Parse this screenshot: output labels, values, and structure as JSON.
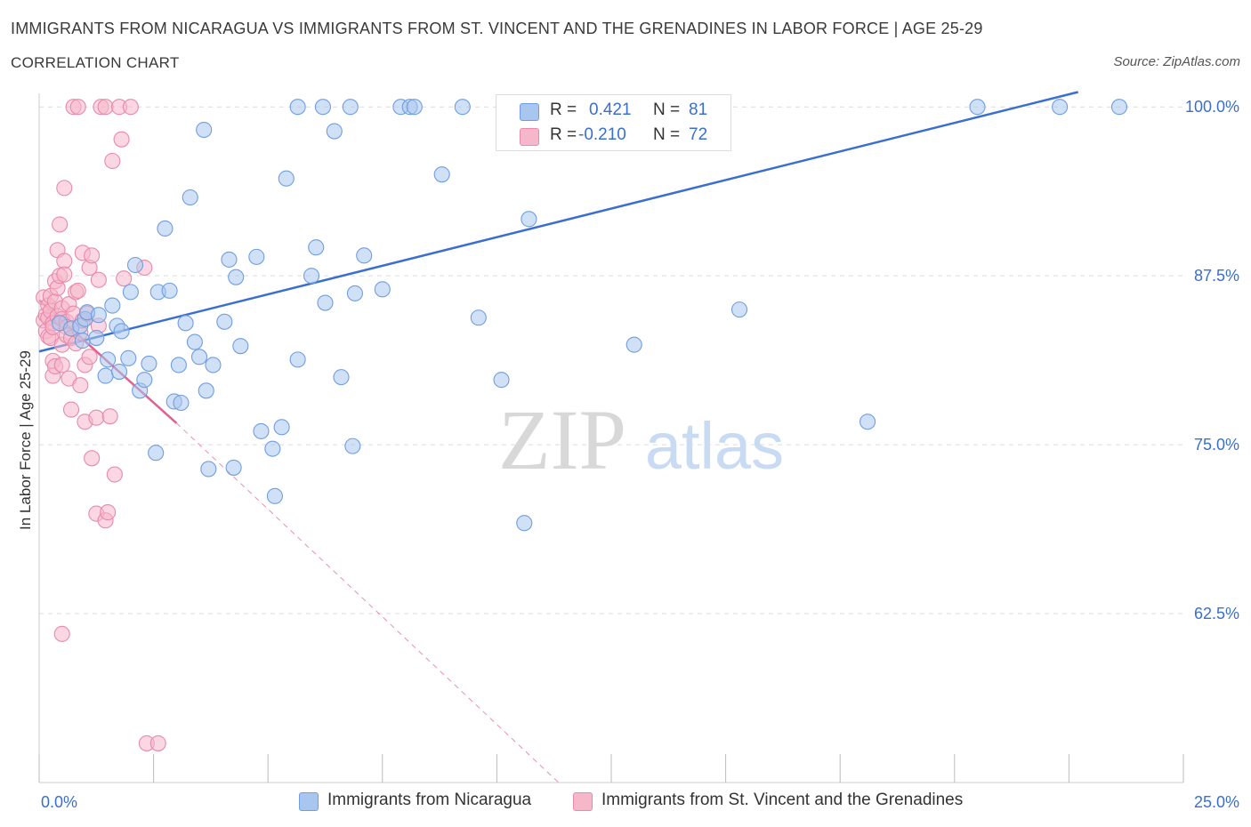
{
  "header": {
    "title": "IMMIGRANTS FROM NICARAGUA VS IMMIGRANTS FROM ST. VINCENT AND THE GRENADINES IN LABOR FORCE | AGE 25-29",
    "subtitle": "CORRELATION CHART",
    "source": "Source: ZipAtlas.com"
  },
  "watermark": {
    "zip": "ZIP",
    "atlas": "atlas"
  },
  "legend": {
    "r_label": "R =",
    "n_label": "N =",
    "rows": [
      {
        "r": "0.421",
        "n": "81"
      },
      {
        "r": "-0.210",
        "n": "72"
      }
    ]
  },
  "chart_data": {
    "type": "scatter",
    "title": "IMMIGRANTS FROM NICARAGUA VS IMMIGRANTS FROM ST. VINCENT AND THE GRENADINES IN LABOR FORCE | AGE 25-29",
    "xlabel": "",
    "ylabel": "In Labor Force | Age 25-29",
    "xlim": [
      0,
      25
    ],
    "ylim": [
      50,
      101
    ],
    "x_tick_labels": [
      "0.0%",
      "25.0%"
    ],
    "y_ticks": [
      62.5,
      75.0,
      87.5,
      100.0
    ],
    "y_tick_labels": [
      "62.5%",
      "75.0%",
      "87.5%",
      "100.0%"
    ],
    "grid": true,
    "legend_position": "bottom",
    "colors": {
      "nicaragua_fill": "#a9c6ef",
      "nicaragua_stroke": "#6f9ee0",
      "nicaragua_line": "#3a6fd0",
      "stvincent_fill": "#f6b7cb",
      "stvincent_stroke": "#e88aaa",
      "stvincent_line": "#e0608e",
      "tick_label": "#3a6fd0"
    },
    "series": [
      {
        "name": "Immigrants from Nicaragua",
        "r": 0.421,
        "n": 81,
        "trend": {
          "x0": 0.0,
          "y0": 81.9,
          "x1": 22.7,
          "y1": 101.1
        },
        "points": [
          [
            0.45,
            84.0
          ],
          [
            0.7,
            83.6
          ],
          [
            0.9,
            83.8
          ],
          [
            0.95,
            82.7
          ],
          [
            1.0,
            84.3
          ],
          [
            1.05,
            84.8
          ],
          [
            1.3,
            84.6
          ],
          [
            1.25,
            82.9
          ],
          [
            1.45,
            80.1
          ],
          [
            1.5,
            81.3
          ],
          [
            1.6,
            85.3
          ],
          [
            1.7,
            83.8
          ],
          [
            1.75,
            80.4
          ],
          [
            1.8,
            83.4
          ],
          [
            1.95,
            81.4
          ],
          [
            2.0,
            86.3
          ],
          [
            2.1,
            88.3
          ],
          [
            2.2,
            79.0
          ],
          [
            2.3,
            79.8
          ],
          [
            2.4,
            81.0
          ],
          [
            2.55,
            74.4
          ],
          [
            2.6,
            86.3
          ],
          [
            2.75,
            91.0
          ],
          [
            2.85,
            86.4
          ],
          [
            2.95,
            78.2
          ],
          [
            3.05,
            80.9
          ],
          [
            3.1,
            78.1
          ],
          [
            3.2,
            84.0
          ],
          [
            3.3,
            93.3
          ],
          [
            3.4,
            82.6
          ],
          [
            3.5,
            81.5
          ],
          [
            3.6,
            98.3
          ],
          [
            3.65,
            79.0
          ],
          [
            3.7,
            73.2
          ],
          [
            3.8,
            80.9
          ],
          [
            4.05,
            84.1
          ],
          [
            4.25,
            73.3
          ],
          [
            4.15,
            88.7
          ],
          [
            4.3,
            87.4
          ],
          [
            4.4,
            82.3
          ],
          [
            4.75,
            88.9
          ],
          [
            4.85,
            76.0
          ],
          [
            5.1,
            74.7
          ],
          [
            5.15,
            71.2
          ],
          [
            5.3,
            76.3
          ],
          [
            5.4,
            94.7
          ],
          [
            5.65,
            81.3
          ],
          [
            5.65,
            100.0
          ],
          [
            5.95,
            87.5
          ],
          [
            6.05,
            89.6
          ],
          [
            6.2,
            100.0
          ],
          [
            6.25,
            85.5
          ],
          [
            6.45,
            98.2
          ],
          [
            6.6,
            80.0
          ],
          [
            6.8,
            100.0
          ],
          [
            6.85,
            74.9
          ],
          [
            6.9,
            86.2
          ],
          [
            7.1,
            89.0
          ],
          [
            7.5,
            86.5
          ],
          [
            7.9,
            100.0
          ],
          [
            8.1,
            100.0
          ],
          [
            8.2,
            100.0
          ],
          [
            8.8,
            95.0
          ],
          [
            9.25,
            100.0
          ],
          [
            9.6,
            84.4
          ],
          [
            10.1,
            79.8
          ],
          [
            10.6,
            69.2
          ],
          [
            10.7,
            91.7
          ],
          [
            11.25,
            100.0
          ],
          [
            11.6,
            100.0
          ],
          [
            12.0,
            100.0
          ],
          [
            12.4,
            100.0
          ],
          [
            13.0,
            100.0
          ],
          [
            13.0,
            82.4
          ],
          [
            15.3,
            85.0
          ],
          [
            18.1,
            76.7
          ],
          [
            20.5,
            100.0
          ],
          [
            22.3,
            100.0
          ],
          [
            23.6,
            100.0
          ]
        ]
      },
      {
        "name": "Immigrants from St. Vincent and the Grenadines",
        "r": -0.21,
        "n": 72,
        "trend": {
          "x0": 0.0,
          "y0": 85.7,
          "x1": 3.0,
          "y1": 76.6
        },
        "trend_ext": {
          "x0": 3.0,
          "y0": 76.6,
          "x1": 11.35,
          "y1": 50.0
        },
        "points": [
          [
            0.1,
            84.2
          ],
          [
            0.1,
            85.9
          ],
          [
            0.15,
            84.6
          ],
          [
            0.15,
            83.4
          ],
          [
            0.2,
            84.4
          ],
          [
            0.2,
            83.0
          ],
          [
            0.2,
            85.3
          ],
          [
            0.25,
            84.9
          ],
          [
            0.25,
            82.9
          ],
          [
            0.25,
            86.0
          ],
          [
            0.3,
            84.0
          ],
          [
            0.3,
            83.7
          ],
          [
            0.3,
            81.2
          ],
          [
            0.3,
            80.1
          ],
          [
            0.35,
            85.6
          ],
          [
            0.35,
            87.1
          ],
          [
            0.35,
            80.8
          ],
          [
            0.4,
            84.5
          ],
          [
            0.4,
            89.4
          ],
          [
            0.4,
            86.6
          ],
          [
            0.45,
            91.3
          ],
          [
            0.45,
            87.5
          ],
          [
            0.5,
            85.1
          ],
          [
            0.5,
            84.3
          ],
          [
            0.5,
            82.4
          ],
          [
            0.5,
            80.9
          ],
          [
            0.5,
            61.0
          ],
          [
            0.55,
            94.0
          ],
          [
            0.55,
            88.6
          ],
          [
            0.55,
            87.6
          ],
          [
            0.6,
            84.1
          ],
          [
            0.6,
            83.7
          ],
          [
            0.6,
            83.1
          ],
          [
            0.65,
            85.4
          ],
          [
            0.65,
            79.9
          ],
          [
            0.7,
            82.9
          ],
          [
            0.7,
            77.6
          ],
          [
            0.75,
            84.7
          ],
          [
            0.75,
            100.0
          ],
          [
            0.8,
            82.5
          ],
          [
            0.8,
            86.3
          ],
          [
            0.85,
            100.0
          ],
          [
            0.85,
            86.4
          ],
          [
            0.9,
            83.3
          ],
          [
            0.9,
            79.4
          ],
          [
            0.95,
            84.2
          ],
          [
            0.95,
            89.2
          ],
          [
            1.0,
            76.7
          ],
          [
            1.0,
            80.9
          ],
          [
            1.05,
            84.7
          ],
          [
            1.1,
            88.1
          ],
          [
            1.1,
            81.5
          ],
          [
            1.15,
            89.0
          ],
          [
            1.15,
            74.0
          ],
          [
            1.25,
            77.0
          ],
          [
            1.25,
            69.9
          ],
          [
            1.3,
            87.2
          ],
          [
            1.3,
            83.8
          ],
          [
            1.35,
            100.0
          ],
          [
            1.45,
            100.0
          ],
          [
            1.45,
            69.4
          ],
          [
            1.5,
            70.0
          ],
          [
            1.55,
            77.1
          ],
          [
            1.6,
            96.0
          ],
          [
            1.65,
            72.8
          ],
          [
            1.75,
            100.0
          ],
          [
            1.8,
            97.6
          ],
          [
            1.85,
            87.3
          ],
          [
            2.0,
            100.0
          ],
          [
            2.3,
            88.1
          ],
          [
            2.35,
            52.9
          ],
          [
            2.6,
            52.9
          ]
        ]
      }
    ]
  },
  "bottom_legend": [
    {
      "label": "Immigrants from Nicaragua"
    },
    {
      "label": "Immigrants from St. Vincent and the Grenadines"
    }
  ]
}
